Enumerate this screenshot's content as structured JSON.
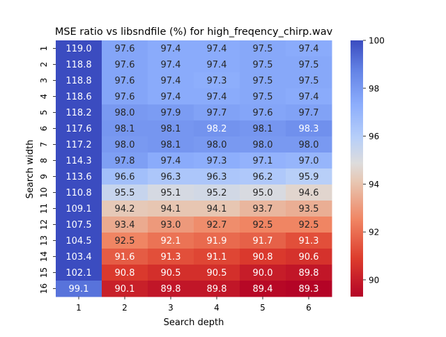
{
  "chart_data": {
    "type": "heatmap",
    "title": "MSE ratio vs libsndfile (%) for high_freqency_chirp.wav",
    "xlabel": "Search depth",
    "ylabel": "Search width",
    "x_categories": [
      "1",
      "2",
      "3",
      "4",
      "5",
      "6"
    ],
    "y_categories": [
      "1",
      "2",
      "3",
      "4",
      "5",
      "6",
      "7",
      "8",
      "9",
      "10",
      "11",
      "12",
      "13",
      "14",
      "15",
      "16"
    ],
    "values": [
      [
        119.0,
        97.6,
        97.4,
        97.4,
        97.5,
        97.4
      ],
      [
        118.8,
        97.6,
        97.4,
        97.4,
        97.5,
        97.5
      ],
      [
        118.8,
        97.6,
        97.4,
        97.3,
        97.5,
        97.5
      ],
      [
        118.6,
        97.6,
        97.4,
        97.4,
        97.5,
        97.4
      ],
      [
        118.2,
        98.0,
        97.9,
        97.7,
        97.6,
        97.7
      ],
      [
        117.6,
        98.1,
        98.1,
        98.2,
        98.1,
        98.3
      ],
      [
        117.2,
        98.0,
        98.1,
        98.0,
        98.0,
        98.0
      ],
      [
        114.3,
        97.8,
        97.4,
        97.3,
        97.1,
        97.0
      ],
      [
        113.6,
        96.6,
        96.3,
        96.3,
        96.2,
        95.9
      ],
      [
        110.8,
        95.5,
        95.1,
        95.2,
        95.0,
        94.6
      ],
      [
        109.1,
        94.2,
        94.1,
        94.1,
        93.7,
        93.5
      ],
      [
        107.5,
        93.4,
        93.0,
        92.7,
        92.5,
        92.5
      ],
      [
        104.5,
        92.5,
        92.1,
        91.9,
        91.7,
        91.3
      ],
      [
        103.4,
        91.6,
        91.3,
        91.1,
        90.8,
        90.6
      ],
      [
        102.1,
        90.8,
        90.5,
        90.5,
        90.0,
        89.8
      ],
      [
        99.1,
        90.1,
        89.8,
        89.8,
        89.4,
        89.3
      ]
    ],
    "value_format": "0.0",
    "colormap": "coolwarm_r",
    "vmin": 89.3,
    "vmax": 100,
    "colorbar": {
      "ticks": [
        "90",
        "92",
        "94",
        "96",
        "98",
        "100"
      ]
    },
    "grid": false,
    "legend": "colorbar-right"
  }
}
